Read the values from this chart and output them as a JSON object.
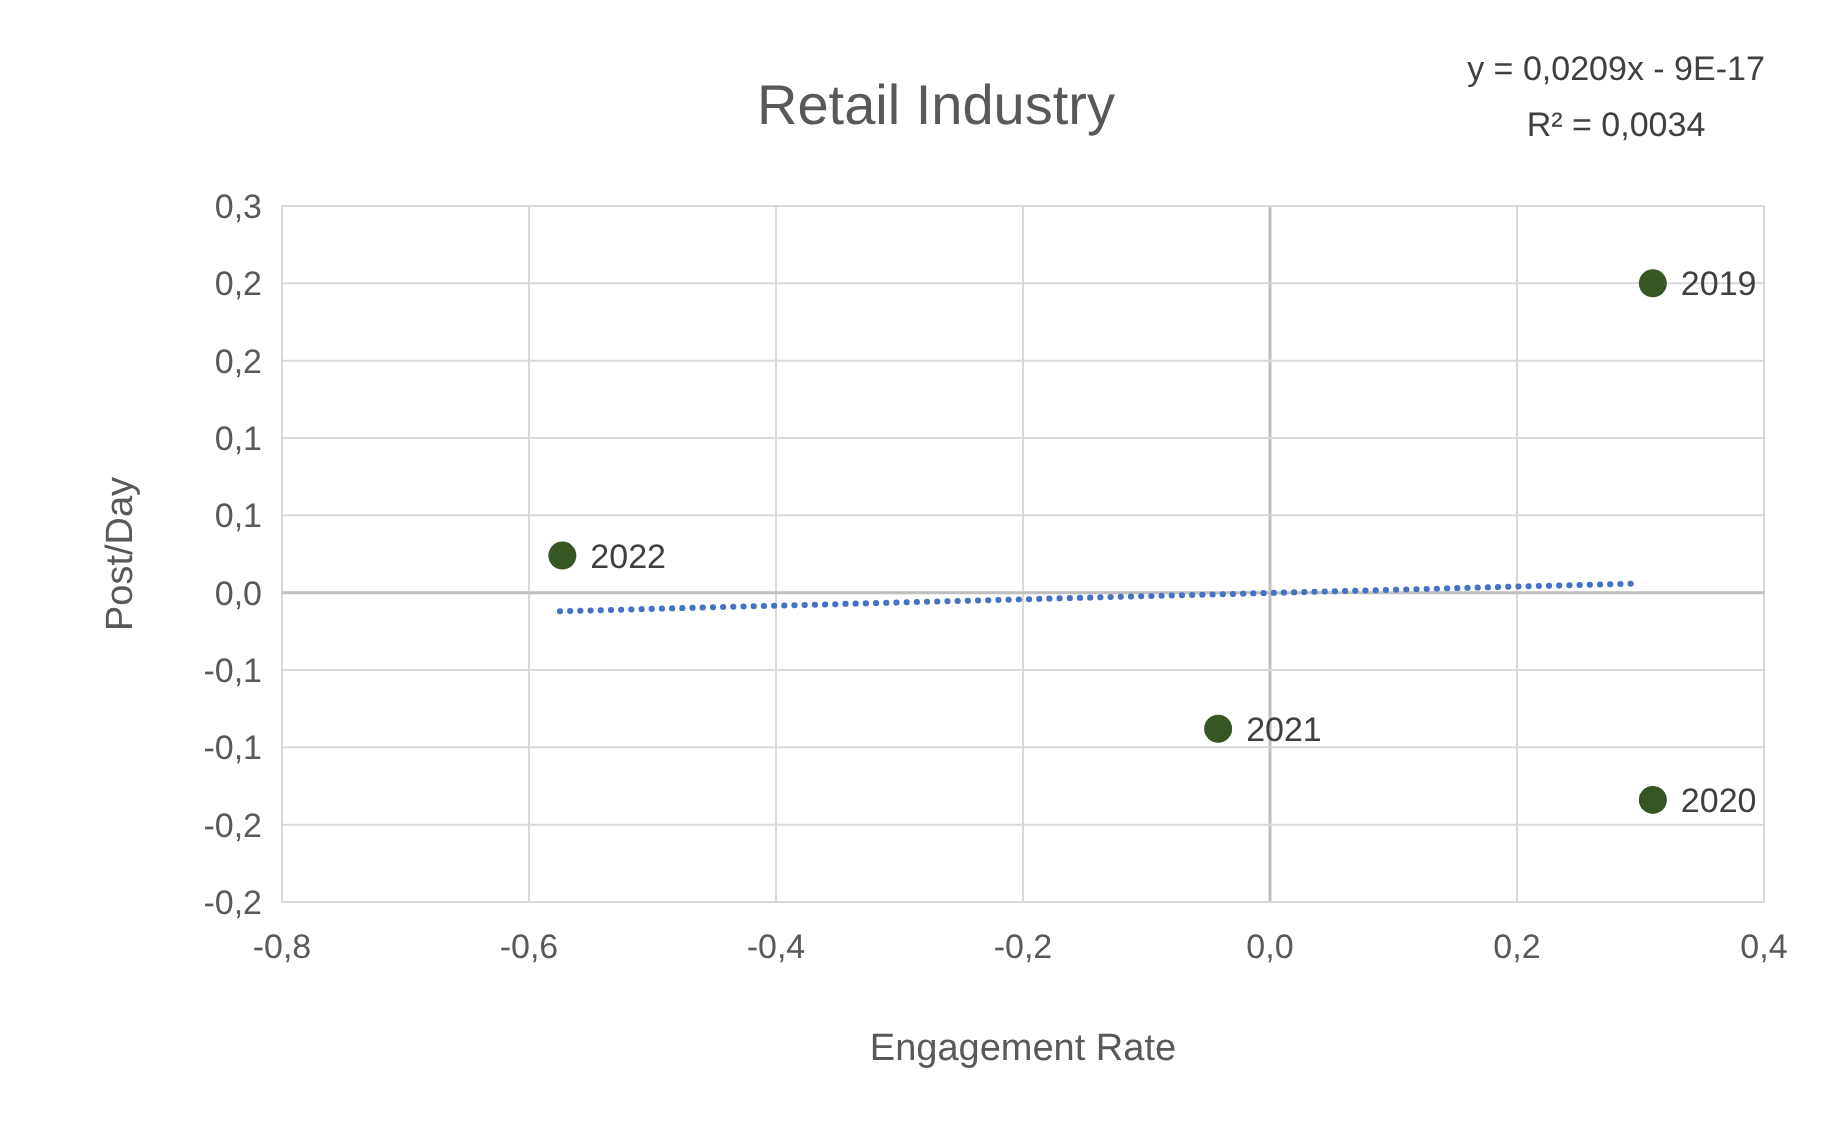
{
  "chart_data": {
    "type": "scatter",
    "title": "Retail Industry",
    "xlabel": "Engagement Rate",
    "ylabel": "Post/Day",
    "annotations": [
      "y = 0,0209x - 9E-17",
      "R² = 0,0034",
      {
        "text": "2019",
        "x": 0.31,
        "y": 0.2
      },
      {
        "text": "2020",
        "x": 0.31,
        "y": -0.134
      },
      {
        "text": "2021",
        "x": -0.042,
        "y": -0.088
      },
      {
        "text": "2022",
        "x": -0.573,
        "y": 0.024
      }
    ],
    "xlim": [
      -0.8,
      0.4
    ],
    "xticks": [
      {
        "value": -0.8,
        "label": "-0,8"
      },
      {
        "value": -0.6,
        "label": "-0,6"
      },
      {
        "value": -0.4,
        "label": "-0,4"
      },
      {
        "value": -0.2,
        "label": "-0,2"
      },
      {
        "value": 0,
        "label": "0,0"
      },
      {
        "value": 0.2,
        "label": "0,2"
      },
      {
        "value": 0.4,
        "label": "0,4"
      }
    ],
    "ylim": [
      -0.2,
      0.25
    ],
    "yticks": [
      {
        "value": -0.2,
        "label": "-0,2"
      },
      {
        "value": -0.15,
        "label": "-0,2"
      },
      {
        "value": -0.1,
        "label": "-0,1"
      },
      {
        "value": -0.05,
        "label": "-0,1"
      },
      {
        "value": 0,
        "label": "0,0"
      },
      {
        "value": 0.05,
        "label": "0,1"
      },
      {
        "value": 0.1,
        "label": "0,1"
      },
      {
        "value": 0.15,
        "label": "0,2"
      },
      {
        "value": 0.2,
        "label": "0,2"
      },
      {
        "value": 0.25,
        "label": "0,3"
      }
    ],
    "grid": true,
    "series": [
      {
        "color": "#375623",
        "marker": "circle",
        "x": [
          0.31,
          0.31,
          -0.042,
          -0.573
        ],
        "values": [
          0.2,
          -0.134,
          -0.088,
          0.024
        ]
      },
      {
        "type": "line",
        "color": "#4472c4",
        "line_style": "dotted",
        "marker": "none",
        "x": [
          -0.575,
          0.3
        ],
        "values": [
          -0.012,
          0.006
        ]
      }
    ]
  }
}
